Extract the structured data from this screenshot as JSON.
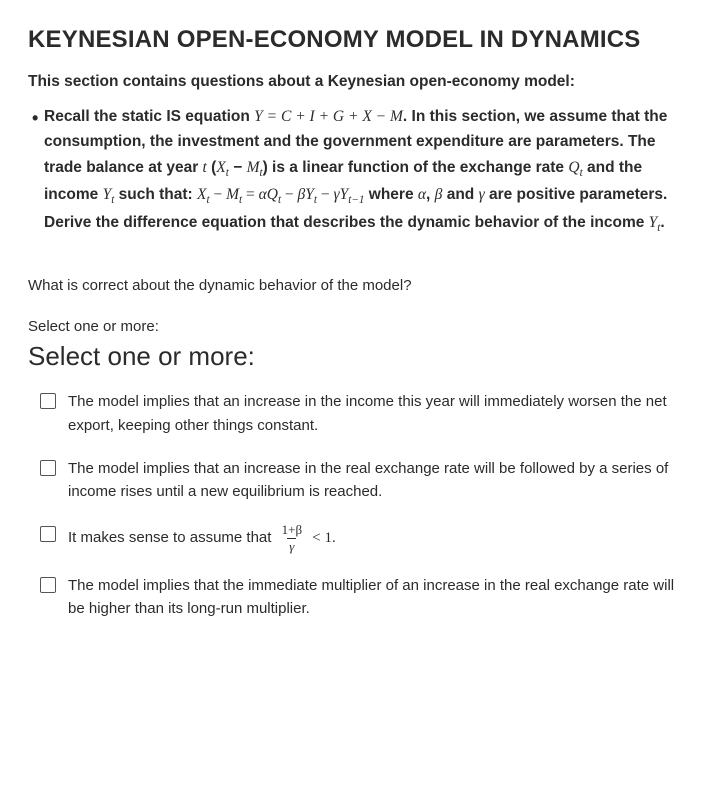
{
  "colors": {
    "text": "#2b2b2b",
    "border": "#555555",
    "background": "#ffffff"
  },
  "title": "KEYNESIAN OPEN-ECONOMY MODEL IN DYNAMICS",
  "intro": "This section contains questions about a Keynesian open-economy model:",
  "bullet": {
    "dot": "•",
    "seg1": "Recall the static IS equation ",
    "eq1": "Y = C + I + G + X − M",
    "seg2": ". In this section, we assume that the consumption, the investment and the government expenditure are parameters. The trade balance at year ",
    "var_t": "t",
    "seg2b": " (",
    "xm": "X",
    "sub_t1": "t",
    "seg2c": " − ",
    "m": "M",
    "sub_t2": "t",
    "seg2d": ") is a linear function of the exchange rate ",
    "q": "Q",
    "sub_t3": "t",
    "seg3": " and the income ",
    "y": "Y",
    "sub_t4": "t",
    "seg4": " such that: ",
    "eq2_x": "X",
    "eq2_t5": "t",
    "eq2_min1": " − ",
    "eq2_m": "M",
    "eq2_t6": "t",
    "eq2_eq": " = ",
    "eq2_alpha": "α",
    "eq2_q": "Q",
    "eq2_t7": "t",
    "eq2_min2": " − ",
    "eq2_beta": "β",
    "eq2_y1": "Y",
    "eq2_t8": "t",
    "eq2_min3": " − ",
    "eq2_gamma": "γ",
    "eq2_y2": "Y",
    "eq2_t9": "t−1",
    "seg5": "   where ",
    "alpha2": "α",
    "seg6": ", ",
    "beta2": "β",
    "seg7": " and ",
    "gamma2": "γ",
    "seg8": " are positive parameters. Derive the difference equation that describes the dynamic behavior of the income ",
    "yend": "Y",
    "sub_tend": "t",
    "seg9": "."
  },
  "question": "What is correct about the dynamic behavior of the model?",
  "select_small": "Select one or more:",
  "select_large": "Select one or more:",
  "options": [
    {
      "checked": false,
      "text": "The model implies that an increase in the income this year will immediately worsen the net export, keeping other things constant."
    },
    {
      "checked": false,
      "text": "The model implies that an increase in the real exchange rate will be followed by a series of income rises until a new equilibrium is reached."
    },
    {
      "checked": false,
      "pre": "It makes sense to assume that ",
      "frac_num": "1+β",
      "frac_den": "γ",
      "rel": "<",
      "rhs": "1."
    },
    {
      "checked": false,
      "text": "The model implies that the immediate multiplier of an increase in the real exchange rate will be higher than its long-run multiplier."
    }
  ]
}
